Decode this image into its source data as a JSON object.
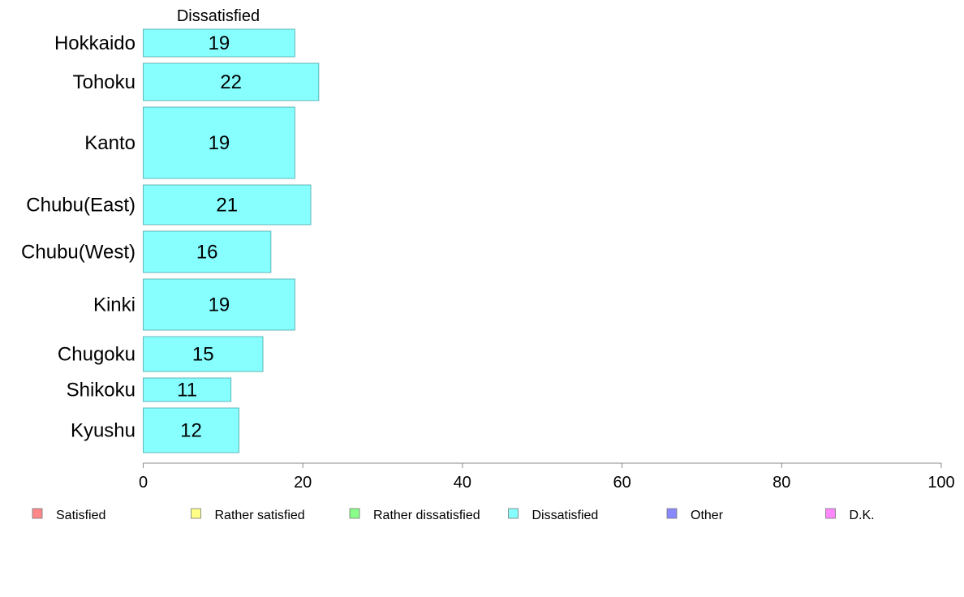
{
  "chart_data": {
    "type": "bar",
    "orientation": "horizontal",
    "title": "",
    "series_title": "Dissatisfied",
    "categories": [
      "Hokkaido",
      "Tohoku",
      "Kanto",
      "Chubu(East)",
      "Chubu(West)",
      "Kinki",
      "Chugoku",
      "Shikoku",
      "Kyushu"
    ],
    "series": [
      {
        "name": "Dissatisfied",
        "values": [
          19,
          22,
          19,
          21,
          16,
          19,
          15,
          11,
          12
        ],
        "labels": [
          "19",
          "22",
          "19",
          "21",
          "16",
          "19",
          "15",
          "11",
          "12"
        ],
        "color": "#88ffff"
      }
    ],
    "xlim": [
      0,
      100
    ],
    "xticks": [
      "0",
      "20",
      "40",
      "60",
      "80",
      "100"
    ],
    "grid": false,
    "legend": {
      "position": "bottom",
      "items": [
        {
          "label": "Satisfied",
          "color": "#ff8888"
        },
        {
          "label": "Rather satisfied",
          "color": "#ffff88"
        },
        {
          "label": "Rather dissatisfied",
          "color": "#88ff88"
        },
        {
          "label": "Dissatisfied",
          "color": "#88ffff"
        },
        {
          "label": "Other",
          "color": "#8888ff"
        },
        {
          "label": "D.K.",
          "color": "#ff88ff"
        }
      ]
    }
  }
}
